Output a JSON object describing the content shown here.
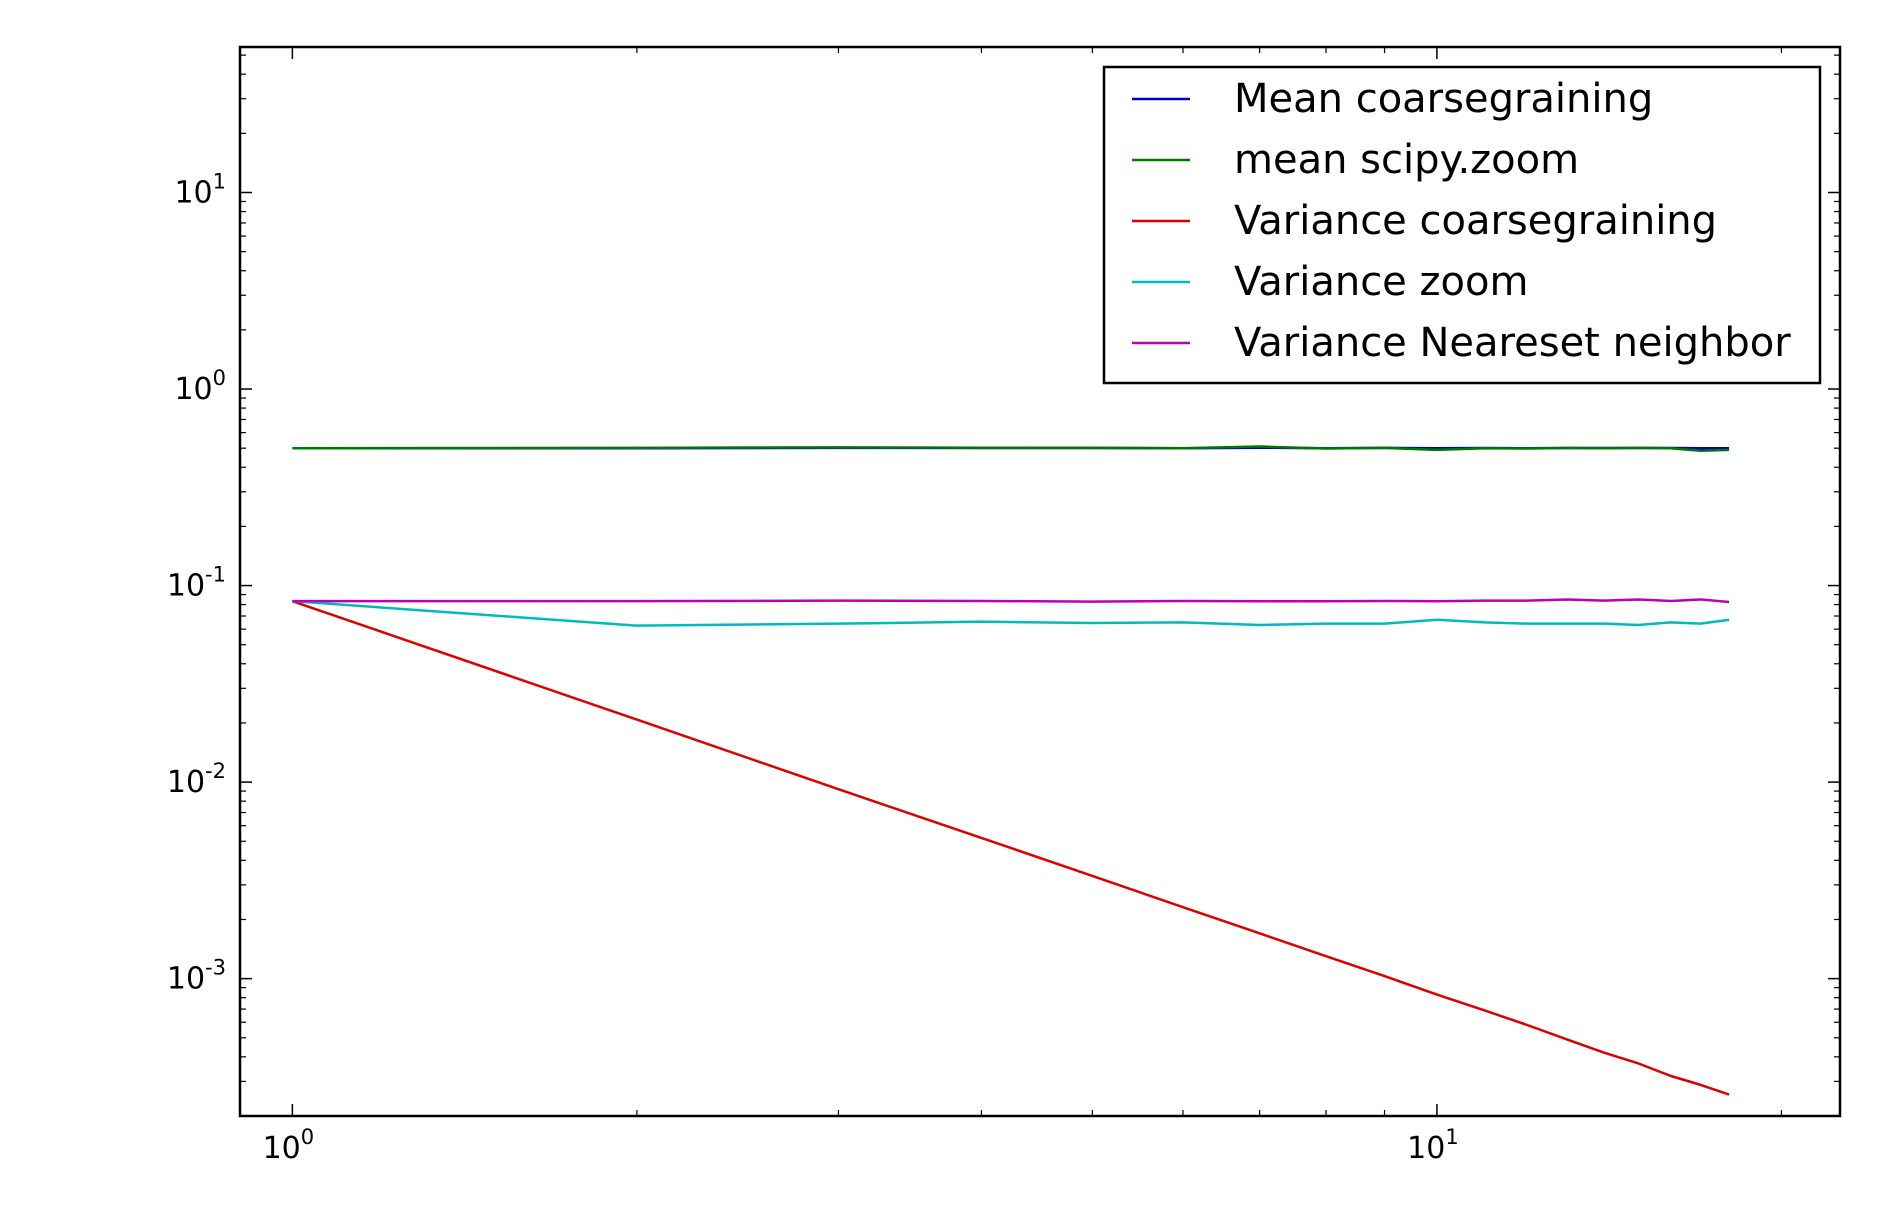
{
  "chart_data": {
    "type": "line",
    "title": "",
    "xlabel": "",
    "ylabel": "",
    "xscale": "log",
    "yscale": "log",
    "xlim": [
      0.9,
      22.5
    ],
    "ylim": [
      0.0002,
      55
    ],
    "grid": false,
    "legend_position": "top-right",
    "x_ticks": [
      {
        "base": "10",
        "exp": "0",
        "value": 1
      },
      {
        "base": "10",
        "exp": "1",
        "value": 10
      }
    ],
    "y_ticks": [
      {
        "base": "10",
        "exp": "1",
        "value": 10
      },
      {
        "base": "10",
        "exp": "0",
        "value": 1
      },
      {
        "base": "10",
        "exp": "-1",
        "value": 0.1
      },
      {
        "base": "10",
        "exp": "-2",
        "value": 0.01
      },
      {
        "base": "10",
        "exp": "-3",
        "value": 0.001
      }
    ],
    "x": [
      1,
      2,
      3,
      4,
      5,
      6,
      7,
      8,
      9,
      10,
      11,
      12,
      13,
      14,
      15,
      16,
      17,
      18
    ],
    "series": [
      {
        "name": "Mean coarsegraining",
        "color": "#0000cc",
        "values": [
          0.5,
          0.5,
          0.502,
          0.501,
          0.501,
          0.5,
          0.503,
          0.5,
          0.502,
          0.5,
          0.501,
          0.5,
          0.501,
          0.501,
          0.501,
          0.501,
          0.5,
          0.5
        ]
      },
      {
        "name": "mean scipy.zoom",
        "color": "#007700",
        "values": [
          0.5,
          0.502,
          0.505,
          0.503,
          0.502,
          0.5,
          0.51,
          0.498,
          0.502,
          0.49,
          0.5,
          0.498,
          0.501,
          0.5,
          0.502,
          0.5,
          0.485,
          0.49
        ]
      },
      {
        "name": "Variance coarsegraining",
        "color": "#dd0000",
        "values": [
          0.0833,
          0.0208,
          0.0092,
          0.0052,
          0.00333,
          0.00231,
          0.0017,
          0.0013,
          0.00103,
          0.00083,
          0.00069,
          0.00058,
          0.00049,
          0.00042,
          0.00037,
          0.00032,
          0.000288,
          0.000257
        ]
      },
      {
        "name": "Variance zoom",
        "color": "#00bbbb",
        "values": [
          0.0833,
          0.0625,
          0.064,
          0.0655,
          0.0645,
          0.065,
          0.063,
          0.064,
          0.064,
          0.067,
          0.065,
          0.064,
          0.064,
          0.064,
          0.063,
          0.065,
          0.064,
          0.067
        ]
      },
      {
        "name": "Variance Neareset neighbor",
        "color": "#bb00bb",
        "values": [
          0.0833,
          0.0833,
          0.0838,
          0.0835,
          0.0828,
          0.0835,
          0.0832,
          0.0832,
          0.0835,
          0.0832,
          0.0838,
          0.0838,
          0.085,
          0.0838,
          0.085,
          0.0835,
          0.085,
          0.0825
        ]
      }
    ]
  }
}
